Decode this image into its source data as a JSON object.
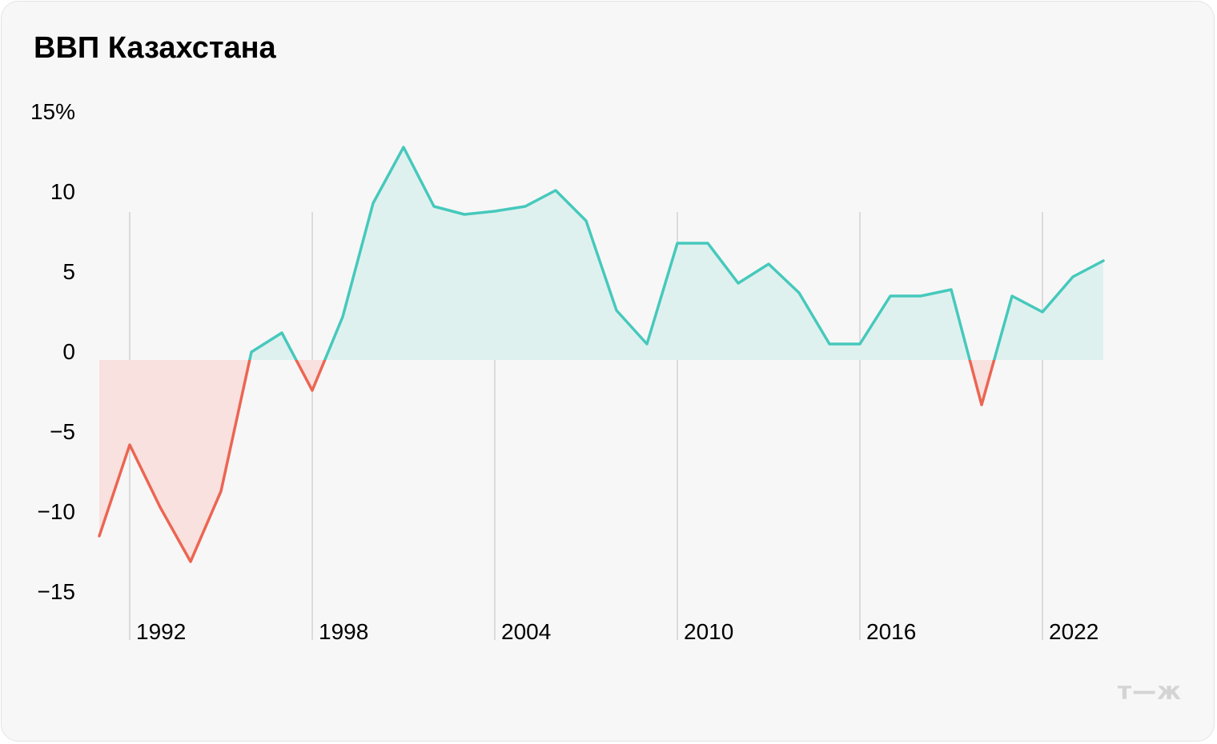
{
  "title": "ВВП Казахстана",
  "logo_text": "т—ж",
  "colors": {
    "positive": "#46c9bc",
    "positive_fill": "#dff1ef",
    "negative": "#ec6552",
    "negative_fill": "#f8e1df",
    "grid": "#d2d2d2",
    "background": "#f7f7f7"
  },
  "chart_data": {
    "type": "area",
    "x": [
      1991,
      1992,
      1993,
      1994,
      1995,
      1996,
      1997,
      1998,
      1999,
      2000,
      2001,
      2002,
      2003,
      2004,
      2005,
      2006,
      2007,
      2008,
      2009,
      2010,
      2011,
      2012,
      2013,
      2014,
      2015,
      2016,
      2017,
      2018,
      2019,
      2020,
      2021,
      2022,
      2023,
      2024
    ],
    "y": [
      -11,
      -5.3,
      -9.2,
      -12.6,
      -8.2,
      0.5,
      1.7,
      -1.9,
      2.7,
      9.8,
      13.3,
      9.6,
      9.1,
      9.3,
      9.6,
      10.6,
      8.7,
      3.1,
      1.0,
      7.3,
      7.3,
      4.8,
      6.0,
      4.2,
      1.0,
      1.0,
      4.0,
      4.0,
      4.4,
      -2.8,
      4.0,
      3.0,
      5.2,
      6.2
    ],
    "xticks": [
      1992,
      1998,
      2004,
      2010,
      2016,
      2022
    ],
    "xtick_labels": [
      "1992",
      "1998",
      "2004",
      "2010",
      "2016",
      "2022"
    ],
    "yticks": [
      15,
      10,
      5,
      0,
      -5,
      -10,
      -15
    ],
    "ytick_labels": [
      "15%",
      "10",
      "5",
      "0",
      "−5",
      "−10",
      "−15"
    ],
    "xlim": [
      1991,
      2024
    ],
    "ylim": [
      -15,
      15
    ],
    "grid": "vertical at x ticks"
  }
}
